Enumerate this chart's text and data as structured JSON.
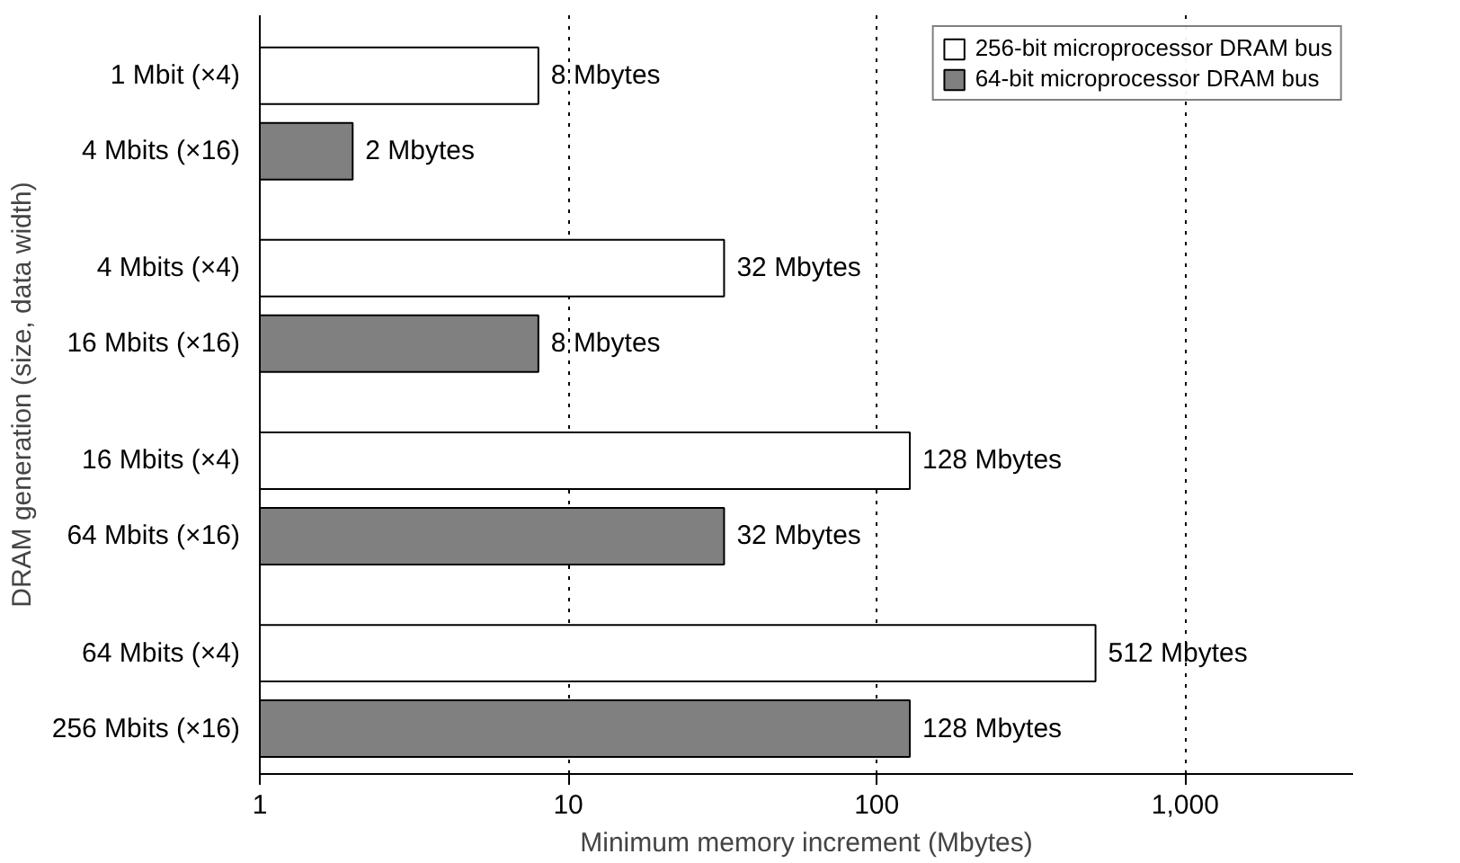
{
  "chart_data": {
    "type": "bar",
    "orientation": "horizontal",
    "log": "x",
    "xlabel": "Minimum memory increment (Mbytes)",
    "ylabel": "DRAM generation (size, data width)",
    "categories": [
      "1 Mbit (×4)",
      "4 Mbits (×16)",
      "4 Mbits (×4)",
      "16 Mbits (×16)",
      "16 Mbits (×4)",
      "64 Mbits (×16)",
      "64 Mbits (×4)",
      "256 Mbits (×16)"
    ],
    "series": [
      {
        "name": "256-bit microprocessor DRAM bus",
        "color": "#ffffff",
        "values": [
          8,
          null,
          32,
          null,
          128,
          null,
          512,
          null
        ],
        "value_labels": [
          "8 Mbytes",
          null,
          "32 Mbytes",
          null,
          "128 Mbytes",
          null,
          "512 Mbytes",
          null
        ]
      },
      {
        "name": "64-bit microprocessor DRAM bus",
        "color": "#808080",
        "values": [
          null,
          2,
          null,
          8,
          null,
          32,
          null,
          128
        ],
        "value_labels": [
          null,
          "2 Mbytes",
          null,
          "8 Mbytes",
          null,
          "32 Mbytes",
          null,
          "128 Mbytes"
        ]
      }
    ],
    "xlim": [
      1,
      3500
    ],
    "xticks": [
      1,
      10,
      100,
      {
        "value": 1000,
        "label": "1,000"
      }
    ],
    "grid": "x",
    "line_style": "dotted",
    "legend": "top right"
  }
}
